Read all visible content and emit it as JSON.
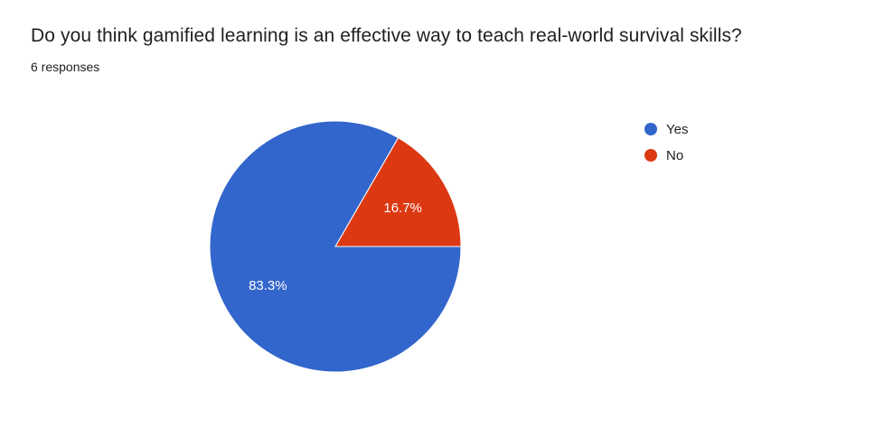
{
  "question": {
    "title": "Do you think gamified learning is an effective way to teach real-world survival skills?",
    "responses_label": "6 responses"
  },
  "chart_data": {
    "type": "pie",
    "title": "Do you think gamified learning is an effective way to teach real-world survival skills?",
    "total_responses": 6,
    "slices": [
      {
        "label": "Yes",
        "value": 5,
        "percent_label": "83.3%",
        "color": "#3366cc"
      },
      {
        "label": "No",
        "value": 1,
        "percent_label": "16.7%",
        "color": "#dc3912"
      }
    ],
    "legend_position": "top-right"
  }
}
